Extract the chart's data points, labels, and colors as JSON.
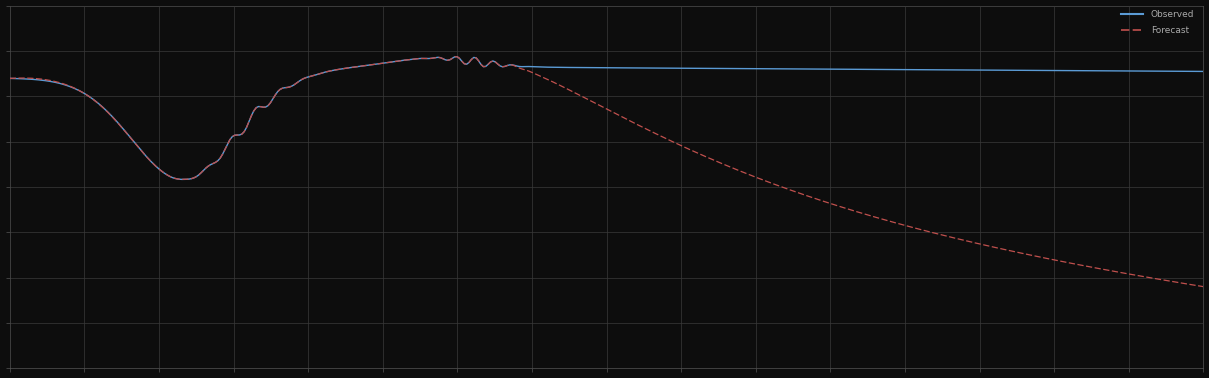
{
  "background_color": "#0d0d0d",
  "plot_bg_color": "#0d0d0d",
  "grid_color": "#3a3a3a",
  "line1_color": "#5b9bd5",
  "line2_color": "#c0504d",
  "line1_label": "Observed",
  "line2_label": "Forecast",
  "figsize": [
    12.09,
    3.78
  ],
  "dpi": 100,
  "n_points": 500,
  "text_color": "#aaaaaa",
  "spine_color": "#555555",
  "ylim_low": 0.0,
  "ylim_high": 1.0,
  "xlim_low": 0.0,
  "xlim_high": 1.0,
  "n_xgrid": 16,
  "n_ygrid": 8
}
